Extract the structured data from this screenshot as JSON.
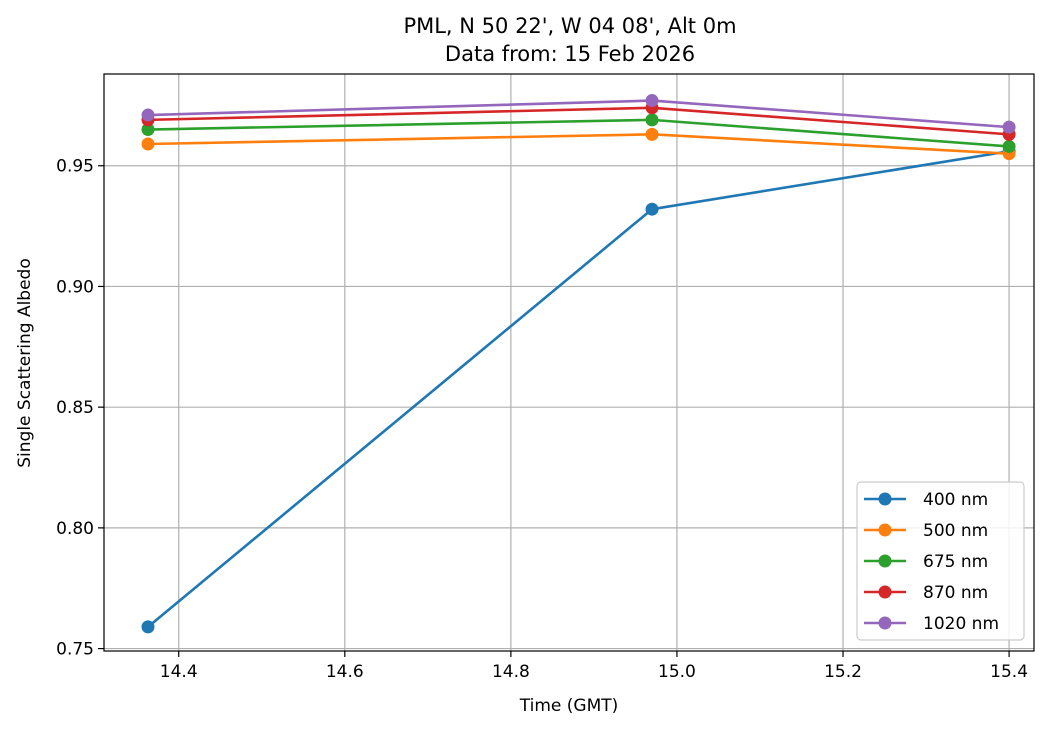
{
  "chart_data": {
    "type": "line",
    "title": "PML, N 50 22', W 04 08', Alt 0m",
    "subtitle": "Data from: 15 Feb 2026",
    "xlabel": "Time (GMT)",
    "ylabel": "Single Scattering Albedo",
    "xlim": [
      14.31,
      15.43
    ],
    "ylim": [
      0.749,
      0.988
    ],
    "xticks": [
      14.4,
      14.6,
      14.8,
      15.0,
      15.2,
      15.4
    ],
    "xtick_labels": [
      "14.4",
      "14.6",
      "14.8",
      "15.0",
      "15.2",
      "15.4"
    ],
    "yticks": [
      0.75,
      0.8,
      0.85,
      0.9,
      0.95
    ],
    "ytick_labels": [
      "0.75",
      "0.80",
      "0.85",
      "0.90",
      "0.95"
    ],
    "grid": true,
    "legend_position": "lower-right",
    "x": [
      14.363,
      14.97,
      15.4
    ],
    "series": [
      {
        "name": "400 nm",
        "color": "#1f77b4",
        "values": [
          0.759,
          0.932,
          0.956
        ]
      },
      {
        "name": "500 nm",
        "color": "#ff7f0e",
        "values": [
          0.959,
          0.963,
          0.955
        ]
      },
      {
        "name": "675 nm",
        "color": "#2ca02c",
        "values": [
          0.965,
          0.969,
          0.958
        ]
      },
      {
        "name": "870 nm",
        "color": "#d62728",
        "values": [
          0.969,
          0.974,
          0.963
        ]
      },
      {
        "name": "1020 nm",
        "color": "#9467bd",
        "values": [
          0.971,
          0.977,
          0.966
        ]
      }
    ]
  }
}
